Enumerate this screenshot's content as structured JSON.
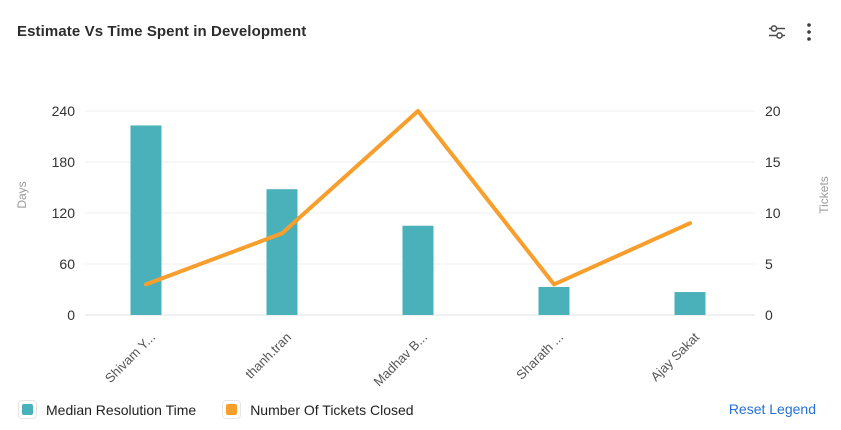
{
  "header": {
    "title": "Estimate Vs Time Spent in Development"
  },
  "chart_data": {
    "type": "combo-bar-line",
    "title": "Estimate Vs Time Spent in Development",
    "categories": [
      "Shivam Y...",
      "thanh.tran",
      "Madhav B...",
      "Sharath ...",
      "Ajay Sakat"
    ],
    "series": [
      {
        "name": "Median Resolution Time",
        "type": "bar",
        "axis": "left",
        "color": "#4AB1BB",
        "values": [
          223,
          148,
          105,
          33,
          27
        ]
      },
      {
        "name": "Number Of Tickets Closed",
        "type": "line",
        "axis": "right",
        "color": "#F89E2C",
        "values": [
          3,
          8,
          20,
          3,
          9
        ]
      }
    ],
    "left_axis": {
      "label": "Days",
      "ticks": [
        0,
        60,
        120,
        180,
        240
      ],
      "max": 240
    },
    "right_axis": {
      "label": "Tickets",
      "ticks": [
        0,
        5,
        10,
        15,
        20
      ],
      "max": 20
    },
    "grid": true,
    "legend_position": "bottom-left",
    "x_label_rotation": -45
  },
  "legend": {
    "items": [
      {
        "label": "Median Resolution Time",
        "color": "#4AB1BB"
      },
      {
        "label": "Number Of Tickets Closed",
        "color": "#F89E2C"
      }
    ],
    "reset_label": "Reset Legend",
    "reset_color": "#2570D6"
  },
  "colors": {
    "bar": "#4AB1BB",
    "line": "#F89E2C",
    "gridline": "#efefef",
    "axis_tick_text": "#333333",
    "axis_name_text": "#9b9b9b",
    "x_label_text": "#555555"
  }
}
